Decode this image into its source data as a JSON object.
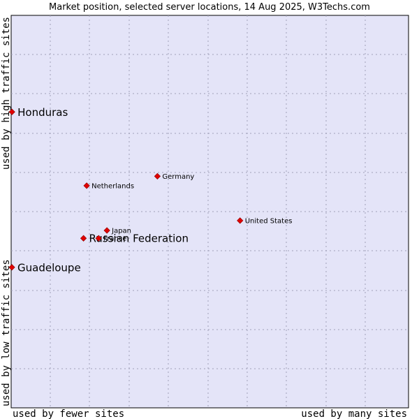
{
  "chart_data": {
    "type": "scatter",
    "title": "Market position, selected server locations, 14 Aug 2025, W3Techs.com",
    "xlabel_left": "used by fewer sites",
    "xlabel_right": "used by many sites",
    "ylabel_bottom": "used by low traffic sites",
    "ylabel_top": "used by high traffic sites",
    "xlim": [
      0,
      100
    ],
    "ylim": [
      0,
      100
    ],
    "grid": true,
    "colors": {
      "plot_bg": "#e4e4f8",
      "grid": "#a0a0b8",
      "border": "#000000",
      "marker": "#e00000",
      "marker_edge": "#8b0000"
    },
    "points": [
      {
        "label": "Honduras",
        "x": 0.2,
        "y": 75.4,
        "emphasis": true
      },
      {
        "label": "Guadeloupe",
        "x": 0.0,
        "y": 35.8,
        "emphasis": true
      },
      {
        "label": "Russian Federation",
        "x": 18.2,
        "y": 43.2,
        "emphasis": true
      },
      {
        "label": "Netherlands",
        "x": 19.0,
        "y": 56.6,
        "emphasis": false
      },
      {
        "label": "Germany",
        "x": 36.8,
        "y": 59.0,
        "emphasis": false
      },
      {
        "label": "United States",
        "x": 57.6,
        "y": 47.7,
        "emphasis": false
      },
      {
        "label": "Japan",
        "x": 24.1,
        "y": 45.2,
        "emphasis": false
      },
      {
        "label": "France",
        "x": 22.0,
        "y": 43.2,
        "emphasis": false
      }
    ]
  }
}
